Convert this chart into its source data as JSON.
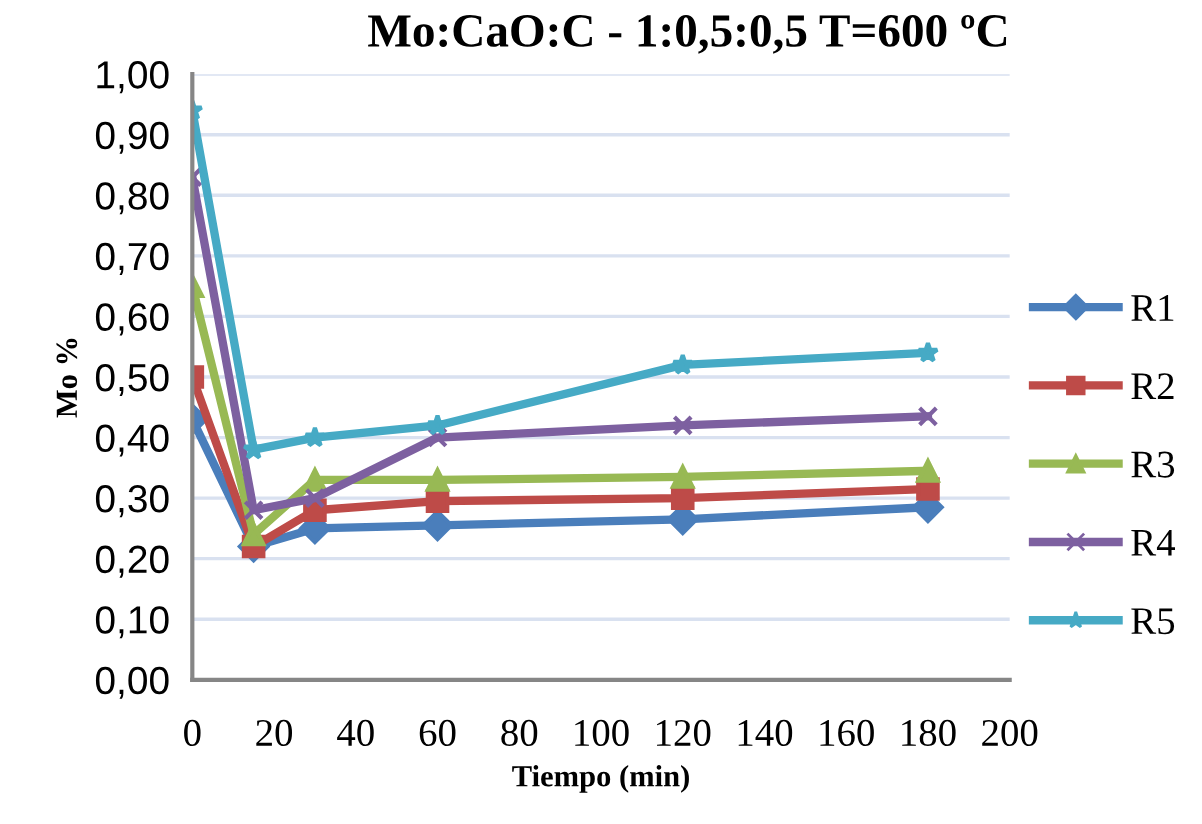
{
  "chart_data": {
    "type": "line",
    "title": "Mo:CaO:C - 1:0,5:0,5 T=600 ºC",
    "xlabel": "Tiempo (min)",
    "ylabel": "Mo %",
    "x": [
      0,
      15,
      30,
      60,
      120,
      180
    ],
    "series": [
      {
        "name": "R1",
        "color": "#4a7ebb",
        "marker": "diamond",
        "values": [
          0.43,
          0.22,
          0.25,
          0.255,
          0.265,
          0.285
        ]
      },
      {
        "name": "R2",
        "color": "#be4b48",
        "marker": "square",
        "values": [
          0.5,
          0.22,
          0.28,
          0.295,
          0.3,
          0.315
        ]
      },
      {
        "name": "R3",
        "color": "#98b954",
        "marker": "triangle",
        "values": [
          0.65,
          0.24,
          0.33,
          0.33,
          0.335,
          0.345
        ]
      },
      {
        "name": "R4",
        "color": "#7d60a0",
        "marker": "cross",
        "values": [
          0.83,
          0.28,
          0.3,
          0.4,
          0.42,
          0.435
        ]
      },
      {
        "name": "R5",
        "color": "#46aac5",
        "marker": "star",
        "values": [
          0.94,
          0.38,
          0.4,
          0.42,
          0.52,
          0.54
        ]
      }
    ],
    "xlim": [
      0,
      200
    ],
    "xticks": [
      0,
      20,
      40,
      60,
      80,
      100,
      120,
      140,
      160,
      180,
      200
    ],
    "ylim": [
      0,
      1
    ],
    "yticks": [
      {
        "value": 0,
        "label": "0,00"
      },
      {
        "value": 0.1,
        "label": "0,10"
      },
      {
        "value": 0.2,
        "label": "0,20"
      },
      {
        "value": 0.3,
        "label": "0,30"
      },
      {
        "value": 0.4,
        "label": "0,40"
      },
      {
        "value": 0.5,
        "label": "0,50"
      },
      {
        "value": 0.6,
        "label": "0,60"
      },
      {
        "value": 0.7,
        "label": "0,70"
      },
      {
        "value": 0.8,
        "label": "0,80"
      },
      {
        "value": 0.9,
        "label": "0,90"
      },
      {
        "value": 1,
        "label": "1,00"
      }
    ],
    "grid": "y",
    "legend": "right",
    "line_style": "solid"
  }
}
